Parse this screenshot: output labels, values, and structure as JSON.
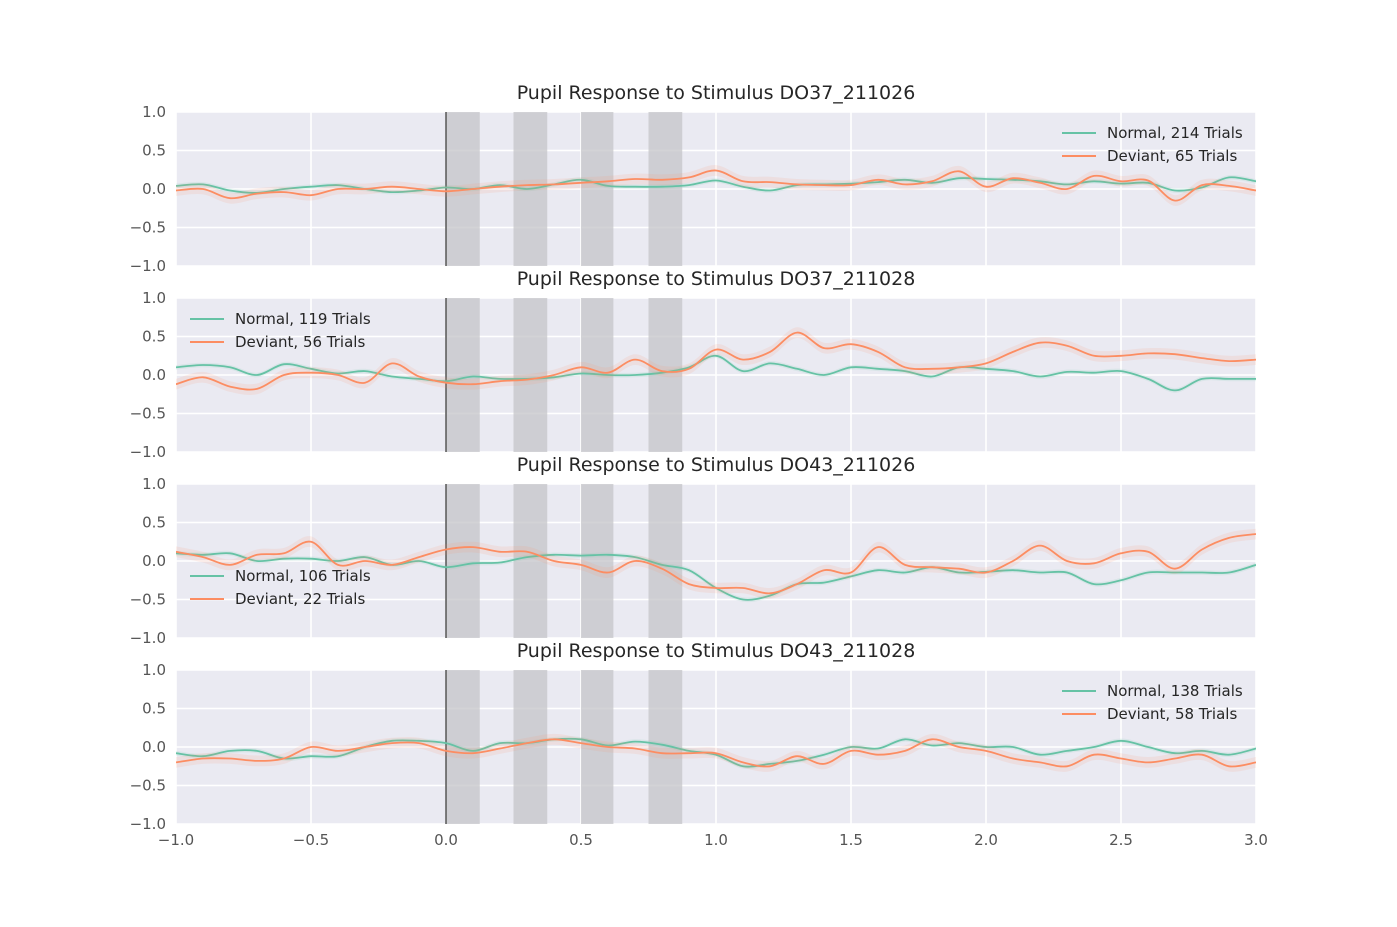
{
  "colors": {
    "normal": "#66c2a5",
    "deviant": "#fc8d62",
    "background": "#eaeaf2",
    "grid": "#ffffff",
    "stim": "#c4c4c8",
    "onset": "#555555"
  },
  "shared": {
    "xlim": [
      -1.0,
      3.0
    ],
    "ylim": [
      -1.0,
      1.0
    ],
    "xticks": [
      -1.0,
      -0.5,
      0.0,
      0.5,
      1.0,
      1.5,
      2.0,
      2.5,
      3.0
    ],
    "xtick_labels": [
      "−1.0",
      "−0.5",
      "0.0",
      "0.5",
      "1.0",
      "1.5",
      "2.0",
      "2.5",
      "3.0"
    ],
    "yticks": [
      1.0,
      0.5,
      0.0,
      -0.5,
      -1.0
    ],
    "ytick_labels": [
      "1.0",
      "0.5",
      "0.0",
      "−0.5",
      "−1.0"
    ],
    "stimulus_windows": [
      [
        0.0,
        0.125
      ],
      [
        0.25,
        0.375
      ],
      [
        0.5,
        0.62
      ],
      [
        0.75,
        0.875
      ]
    ],
    "onset_line_x": 0.0
  },
  "chart_data": [
    {
      "type": "line",
      "title": "Pupil Response to Stimulus DO37_211026",
      "legend_position": "top-right",
      "x": [
        -1.0,
        -0.9,
        -0.8,
        -0.7,
        -0.6,
        -0.5,
        -0.4,
        -0.3,
        -0.2,
        -0.1,
        0.0,
        0.1,
        0.2,
        0.3,
        0.4,
        0.5,
        0.6,
        0.7,
        0.8,
        0.9,
        1.0,
        1.1,
        1.2,
        1.3,
        1.4,
        1.5,
        1.6,
        1.7,
        1.8,
        1.9,
        2.0,
        2.1,
        2.2,
        2.3,
        2.4,
        2.5,
        2.6,
        2.7,
        2.8,
        2.9,
        3.0
      ],
      "series": [
        {
          "name": "Normal, 214 Trials",
          "values": [
            0.04,
            0.06,
            -0.02,
            -0.05,
            0.0,
            0.03,
            0.05,
            0.0,
            -0.04,
            -0.02,
            0.02,
            0.0,
            0.05,
            0.0,
            0.06,
            0.12,
            0.04,
            0.03,
            0.03,
            0.05,
            0.11,
            0.03,
            -0.02,
            0.05,
            0.06,
            0.07,
            0.09,
            0.12,
            0.08,
            0.14,
            0.13,
            0.12,
            0.1,
            0.06,
            0.1,
            0.07,
            0.08,
            -0.02,
            0.02,
            0.15,
            0.1
          ]
        },
        {
          "name": "Deviant, 65 Trials",
          "values": [
            -0.02,
            0.0,
            -0.12,
            -0.06,
            -0.04,
            -0.08,
            0.0,
            0.0,
            0.03,
            0.0,
            -0.03,
            0.0,
            0.03,
            0.05,
            0.06,
            0.08,
            0.1,
            0.13,
            0.12,
            0.15,
            0.24,
            0.1,
            0.09,
            0.06,
            0.05,
            0.05,
            0.12,
            0.06,
            0.1,
            0.23,
            0.03,
            0.14,
            0.08,
            0.0,
            0.17,
            0.1,
            0.11,
            -0.15,
            0.05,
            0.04,
            -0.02
          ]
        }
      ]
    },
    {
      "type": "line",
      "title": "Pupil Response to Stimulus DO37_211028",
      "legend_position": "top-left",
      "x": [
        -1.0,
        -0.9,
        -0.8,
        -0.7,
        -0.6,
        -0.5,
        -0.4,
        -0.3,
        -0.2,
        -0.1,
        0.0,
        0.1,
        0.2,
        0.3,
        0.4,
        0.5,
        0.6,
        0.7,
        0.8,
        0.9,
        1.0,
        1.1,
        1.2,
        1.3,
        1.4,
        1.5,
        1.6,
        1.7,
        1.8,
        1.9,
        2.0,
        2.1,
        2.2,
        2.3,
        2.4,
        2.5,
        2.6,
        2.7,
        2.8,
        2.9,
        3.0
      ],
      "series": [
        {
          "name": "Normal, 119 Trials",
          "values": [
            0.1,
            0.13,
            0.1,
            0.0,
            0.14,
            0.08,
            0.02,
            0.05,
            -0.02,
            -0.05,
            -0.08,
            -0.02,
            -0.05,
            -0.05,
            -0.03,
            0.02,
            0.0,
            0.0,
            0.03,
            0.1,
            0.25,
            0.05,
            0.15,
            0.08,
            0.0,
            0.1,
            0.08,
            0.05,
            -0.02,
            0.1,
            0.08,
            0.05,
            -0.02,
            0.04,
            0.03,
            0.05,
            -0.05,
            -0.2,
            -0.05,
            -0.05,
            -0.05
          ]
        },
        {
          "name": "Deviant, 56 Trials",
          "values": [
            -0.12,
            -0.03,
            -0.15,
            -0.18,
            0.0,
            0.03,
            0.0,
            -0.1,
            0.15,
            -0.02,
            -0.1,
            -0.12,
            -0.08,
            -0.06,
            0.0,
            0.1,
            0.03,
            0.2,
            0.05,
            0.08,
            0.33,
            0.2,
            0.3,
            0.55,
            0.35,
            0.4,
            0.3,
            0.1,
            0.08,
            0.1,
            0.15,
            0.3,
            0.42,
            0.38,
            0.25,
            0.25,
            0.28,
            0.27,
            0.22,
            0.18,
            0.2
          ]
        }
      ]
    },
    {
      "type": "line",
      "title": "Pupil Response to Stimulus DO43_211026",
      "legend_position": "bottom-left",
      "x": [
        -1.0,
        -0.9,
        -0.8,
        -0.7,
        -0.6,
        -0.5,
        -0.4,
        -0.3,
        -0.2,
        -0.1,
        0.0,
        0.1,
        0.2,
        0.3,
        0.4,
        0.5,
        0.6,
        0.7,
        0.8,
        0.9,
        1.0,
        1.1,
        1.2,
        1.3,
        1.4,
        1.5,
        1.6,
        1.7,
        1.8,
        1.9,
        2.0,
        2.1,
        2.2,
        2.3,
        2.4,
        2.5,
        2.6,
        2.7,
        2.8,
        2.9,
        3.0
      ],
      "series": [
        {
          "name": "Normal, 106 Trials",
          "values": [
            0.1,
            0.08,
            0.1,
            0.0,
            0.03,
            0.03,
            0.0,
            0.05,
            -0.05,
            0.0,
            -0.08,
            -0.03,
            -0.02,
            0.05,
            0.08,
            0.07,
            0.08,
            0.05,
            -0.05,
            -0.12,
            -0.35,
            -0.5,
            -0.45,
            -0.3,
            -0.28,
            -0.2,
            -0.12,
            -0.15,
            -0.08,
            -0.15,
            -0.14,
            -0.12,
            -0.15,
            -0.15,
            -0.3,
            -0.25,
            -0.15,
            -0.15,
            -0.15,
            -0.15,
            -0.05
          ]
        },
        {
          "name": "Deviant, 22 Trials",
          "values": [
            0.12,
            0.05,
            -0.05,
            0.08,
            0.1,
            0.25,
            -0.05,
            0.0,
            -0.05,
            0.05,
            0.15,
            0.18,
            0.12,
            0.12,
            0.0,
            -0.05,
            -0.15,
            0.0,
            -0.1,
            -0.3,
            -0.35,
            -0.35,
            -0.42,
            -0.3,
            -0.12,
            -0.15,
            0.18,
            -0.05,
            -0.08,
            -0.1,
            -0.15,
            0.0,
            0.2,
            0.0,
            -0.03,
            0.1,
            0.12,
            -0.1,
            0.15,
            0.3,
            0.35
          ]
        }
      ]
    },
    {
      "type": "line",
      "title": "Pupil Response to Stimulus DO43_211028",
      "legend_position": "top-right",
      "x": [
        -1.0,
        -0.9,
        -0.8,
        -0.7,
        -0.6,
        -0.5,
        -0.4,
        -0.3,
        -0.2,
        -0.1,
        0.0,
        0.1,
        0.2,
        0.3,
        0.4,
        0.5,
        0.6,
        0.7,
        0.8,
        0.9,
        1.0,
        1.1,
        1.2,
        1.3,
        1.4,
        1.5,
        1.6,
        1.7,
        1.8,
        1.9,
        2.0,
        2.1,
        2.2,
        2.3,
        2.4,
        2.5,
        2.6,
        2.7,
        2.8,
        2.9,
        3.0
      ],
      "series": [
        {
          "name": "Normal, 138 Trials",
          "values": [
            -0.08,
            -0.12,
            -0.05,
            -0.05,
            -0.15,
            -0.12,
            -0.12,
            0.0,
            0.08,
            0.08,
            0.05,
            -0.05,
            0.05,
            0.05,
            0.1,
            0.1,
            0.02,
            0.07,
            0.03,
            -0.05,
            -0.1,
            -0.25,
            -0.22,
            -0.18,
            -0.1,
            0.0,
            -0.02,
            0.1,
            0.02,
            0.05,
            0.0,
            0.0,
            -0.1,
            -0.05,
            0.0,
            0.08,
            0.0,
            -0.08,
            -0.05,
            -0.1,
            -0.02
          ]
        },
        {
          "name": "Deviant, 58 Trials",
          "values": [
            -0.2,
            -0.15,
            -0.15,
            -0.18,
            -0.15,
            0.0,
            -0.05,
            0.0,
            0.05,
            0.05,
            -0.05,
            -0.08,
            -0.02,
            0.05,
            0.1,
            0.05,
            0.0,
            -0.02,
            -0.08,
            -0.08,
            -0.08,
            -0.2,
            -0.25,
            -0.12,
            -0.22,
            -0.05,
            -0.1,
            -0.05,
            0.1,
            0.0,
            -0.05,
            -0.15,
            -0.2,
            -0.25,
            -0.1,
            -0.15,
            -0.2,
            -0.15,
            -0.1,
            -0.25,
            -0.2
          ]
        }
      ]
    }
  ]
}
